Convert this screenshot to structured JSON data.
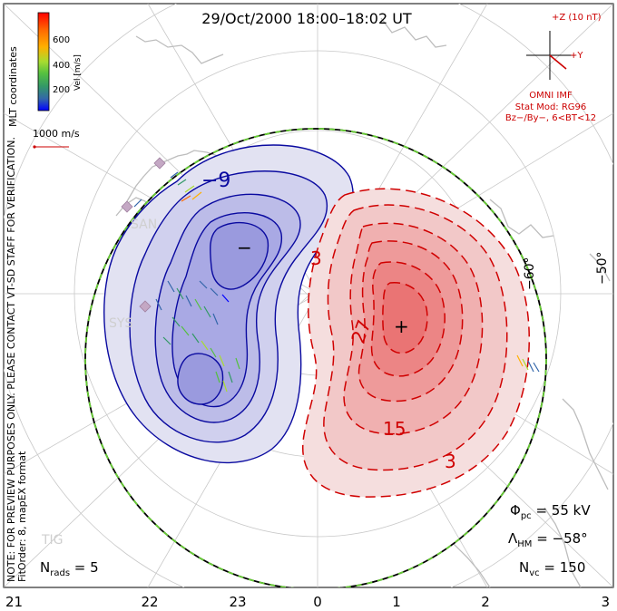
{
  "title": "29/Oct/2000 18:00–18:02 UT",
  "coords_label": "MLT coordinates",
  "colorbar": {
    "label": "Vel [m/s]",
    "ticks": [
      "600",
      "400",
      "200"
    ],
    "colors": [
      "#ff0000",
      "#ff6a00",
      "#ffb000",
      "#c8e030",
      "#66cc33",
      "#339966",
      "#3366aa",
      "#0000ff"
    ]
  },
  "scale_vector": "1000 m/s",
  "imf": {
    "bz_label": "+Z (10 nT)",
    "by_label": "+Y",
    "source": "OMNI IMF",
    "stat_mod": "Stat Mod: RG96",
    "condition": "Bz−/By−, 6<BT<12"
  },
  "disclaimer": "NOTE: FOR PREVIEW PURPOSES ONLY. PLEASE CONTACT VT-SD STAFF FOR VERIFICATION.",
  "fit_order": "FitOrder: 8, mapEX format",
  "mlt_ticks": [
    "21",
    "22",
    "23",
    "0",
    "1",
    "2",
    "3"
  ],
  "lat_labels": [
    "−60°",
    "−50°"
  ],
  "radar_labels": [
    "SAN",
    "SYS",
    "TIG"
  ],
  "contour_labels": {
    "neg": "−9",
    "pos3a": "3",
    "pos27": "27",
    "pos15": "15",
    "pos3b": "3",
    "min_marker": "−",
    "max_marker": "+"
  },
  "stats": {
    "phi_pc": "Φpc = 55 kV",
    "lambda_hm": "ΛHM = −58°",
    "n_vc": "Nvc = 150",
    "n_rads": "Nrads = 5"
  },
  "colors": {
    "neg_contour": "#0a0aa0",
    "pos_contour": "#d00000",
    "boundary_outer": "#66cc33",
    "coast": "#c0c0c0",
    "grid": "#c8c8c8"
  }
}
